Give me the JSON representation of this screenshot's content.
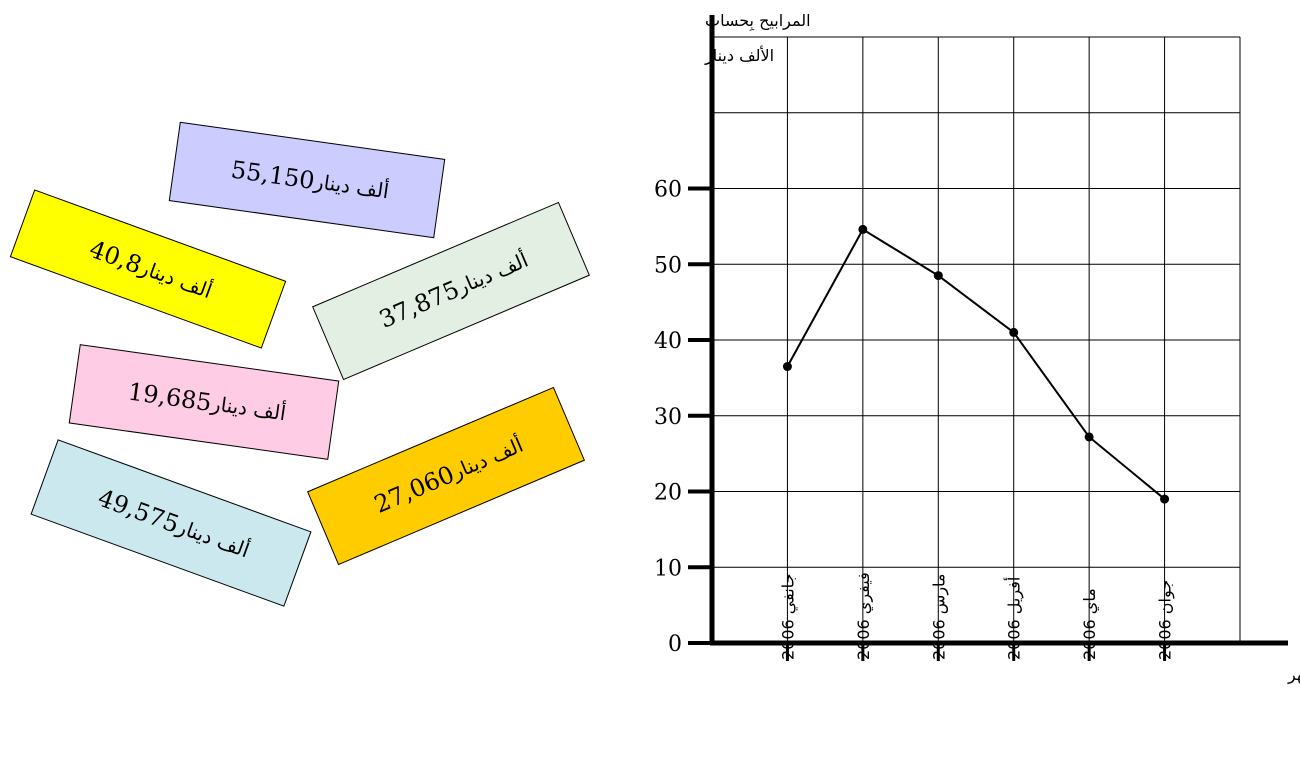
{
  "cards": [
    {
      "value": "55,150",
      "unit": "ألف دينار",
      "bg": "#ccccff"
    },
    {
      "value": "40,8",
      "unit": "ألف دينار",
      "bg": "#ffff00"
    },
    {
      "value": "37,875",
      "unit": "ألف دينار",
      "bg": "#e2efe2"
    },
    {
      "value": "19,685",
      "unit": "ألف دينار",
      "bg": "#ffcce5"
    },
    {
      "value": "27,060",
      "unit": "ألف دينار",
      "bg": "#ffcc00"
    },
    {
      "value": "49,575",
      "unit": "ألف دينار",
      "bg": "#cce8ef"
    }
  ],
  "chart_data": {
    "type": "line",
    "ylabel_line1": "المرابيح بِحساب",
    "ylabel_line2": "الألف دينار",
    "xlabel": "الأشهر",
    "ylim": [
      0,
      80
    ],
    "yticks": [
      0,
      10,
      20,
      30,
      40,
      50,
      60
    ],
    "categories": [
      "جانفي 2006",
      "فيفري 2006",
      "مارس 2006",
      "أفريل 2006",
      "ماي 2006",
      "جوان 2006"
    ],
    "values": [
      36.5,
      54.6,
      48.5,
      41,
      27.2,
      19
    ]
  }
}
